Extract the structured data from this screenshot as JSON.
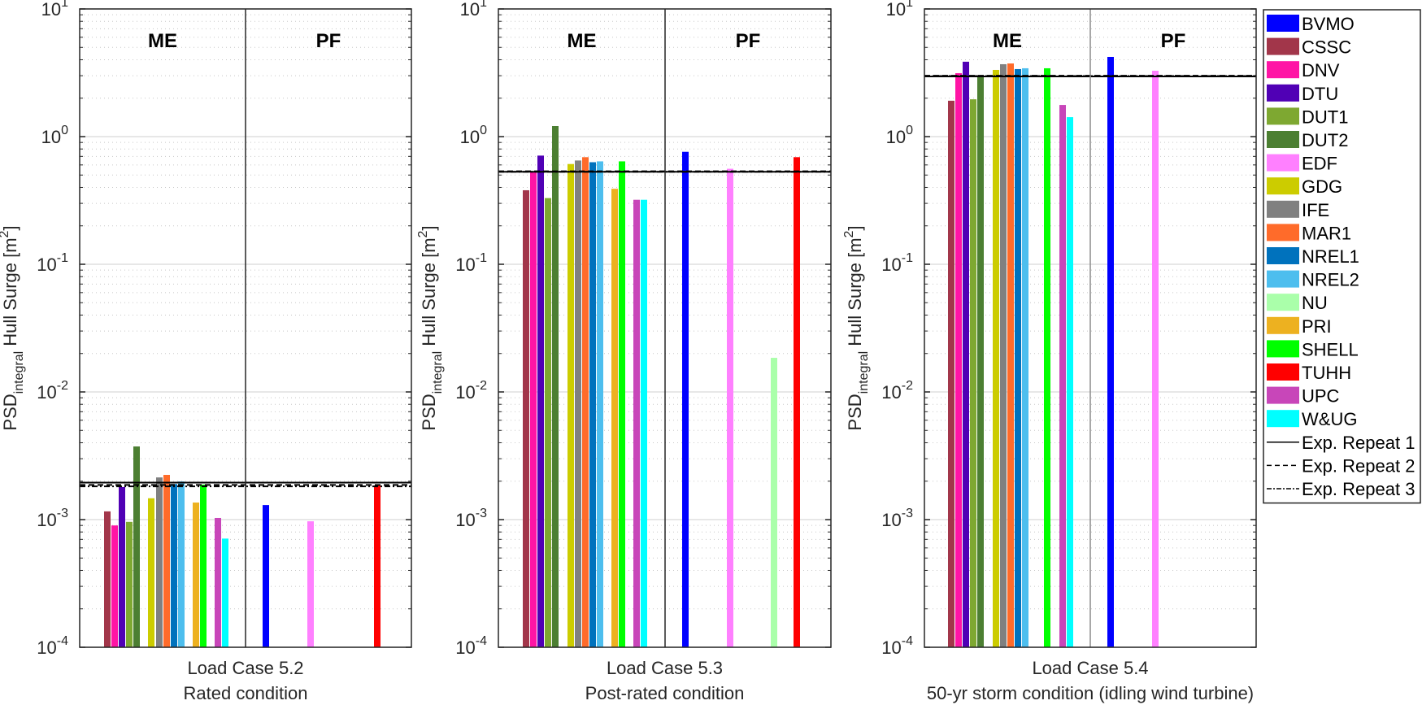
{
  "chart_data": {
    "type": "bar",
    "yscale": "log",
    "ylim": [
      0.0001,
      10
    ],
    "ylabel_main": "PSD",
    "ylabel_sub": "integral",
    "ylabel_rest": " Hull Surge [m",
    "ylabel_sup": "2",
    "ylabel_close": "]",
    "yticks": [
      {
        "base": "10",
        "exp": "1"
      },
      {
        "base": "10",
        "exp": "0"
      },
      {
        "base": "10",
        "exp": "-1"
      },
      {
        "base": "10",
        "exp": "-2"
      },
      {
        "base": "10",
        "exp": "-3"
      },
      {
        "base": "10",
        "exp": "-4"
      }
    ],
    "grid": true,
    "group_labels": [
      "ME",
      "PF"
    ],
    "legend_position": "outside-right",
    "participants": [
      {
        "name": "BVMO",
        "color": "#0000ff"
      },
      {
        "name": "CSSC",
        "color": "#a2364a"
      },
      {
        "name": "DNV",
        "color": "#ff14a5"
      },
      {
        "name": "DTU",
        "color": "#5000b5"
      },
      {
        "name": "DUT1",
        "color": "#7ea831"
      },
      {
        "name": "DUT2",
        "color": "#4c7f32"
      },
      {
        "name": "EDF",
        "color": "#ff80ff"
      },
      {
        "name": "GDG",
        "color": "#cccc00"
      },
      {
        "name": "IFE",
        "color": "#808080"
      },
      {
        "name": "MAR1",
        "color": "#ff6b2a"
      },
      {
        "name": "NREL1",
        "color": "#0072bd"
      },
      {
        "name": "NREL2",
        "color": "#4dbeee"
      },
      {
        "name": "NU",
        "color": "#aaffaa"
      },
      {
        "name": "PRI",
        "color": "#edb120"
      },
      {
        "name": "SHELL",
        "color": "#00ff00"
      },
      {
        "name": "TUHH",
        "color": "#ff0000"
      },
      {
        "name": "UPC",
        "color": "#c846b9"
      },
      {
        "name": "W&UG",
        "color": "#00ffff"
      }
    ],
    "experiment_lines": [
      {
        "name": "Exp. Repeat 1",
        "style": "solid"
      },
      {
        "name": "Exp. Repeat 2",
        "style": "dashed"
      },
      {
        "name": "Exp. Repeat 3",
        "style": "dashdot"
      }
    ],
    "panels": [
      {
        "title": "Load Case 5.2",
        "subtitle": "Rated condition",
        "me": {
          "CSSC": 0.00116,
          "DNV": 0.0009,
          "DTU": 0.0018,
          "DUT1": 0.00096,
          "DUT2": 0.00374,
          "GDG": 0.00147,
          "IFE": 0.00214,
          "MAR1": 0.00224,
          "NREL1": 0.0019,
          "NREL2": 0.00199,
          "PRI": 0.00136,
          "SHELL": 0.00188,
          "UPC": 0.00103,
          "W&UG": 0.00071
        },
        "pf": {
          "BVMO": 0.0013,
          "EDF": 0.00097,
          "TUHH": 0.00185
        },
        "experiment": [
          0.00195,
          0.00187,
          0.00182
        ]
      },
      {
        "title": "Load Case 5.3",
        "subtitle": "Post-rated condition",
        "me": {
          "CSSC": 0.38,
          "DNV": 0.53,
          "DTU": 0.71,
          "DUT1": 0.33,
          "DUT2": 1.21,
          "GDG": 0.61,
          "IFE": 0.65,
          "MAR1": 0.69,
          "NREL1": 0.63,
          "NREL2": 0.64,
          "PRI": 0.39,
          "SHELL": 0.64,
          "UPC": 0.32,
          "W&UG": 0.32
        },
        "pf": {
          "BVMO": 0.76,
          "EDF": 0.56,
          "NU": 0.0185,
          "TUHH": 0.69
        },
        "experiment": [
          0.53,
          0.535,
          0.53
        ]
      },
      {
        "title": "Load Case 5.4",
        "subtitle": "50-yr storm condition (idling wind turbine)",
        "me": {
          "CSSC": 1.91,
          "DNV": 3.14,
          "DTU": 3.86,
          "DUT1": 1.96,
          "DUT2": 2.92,
          "GDG": 3.33,
          "IFE": 3.69,
          "MAR1": 3.74,
          "NREL1": 3.38,
          "NREL2": 3.43,
          "SHELL": 3.43,
          "UPC": 1.77,
          "W&UG": 1.42
        },
        "pf": {
          "BVMO": 4.21,
          "EDF": 3.28
        },
        "experiment": [
          2.96,
          3.0,
          2.98
        ]
      }
    ]
  }
}
